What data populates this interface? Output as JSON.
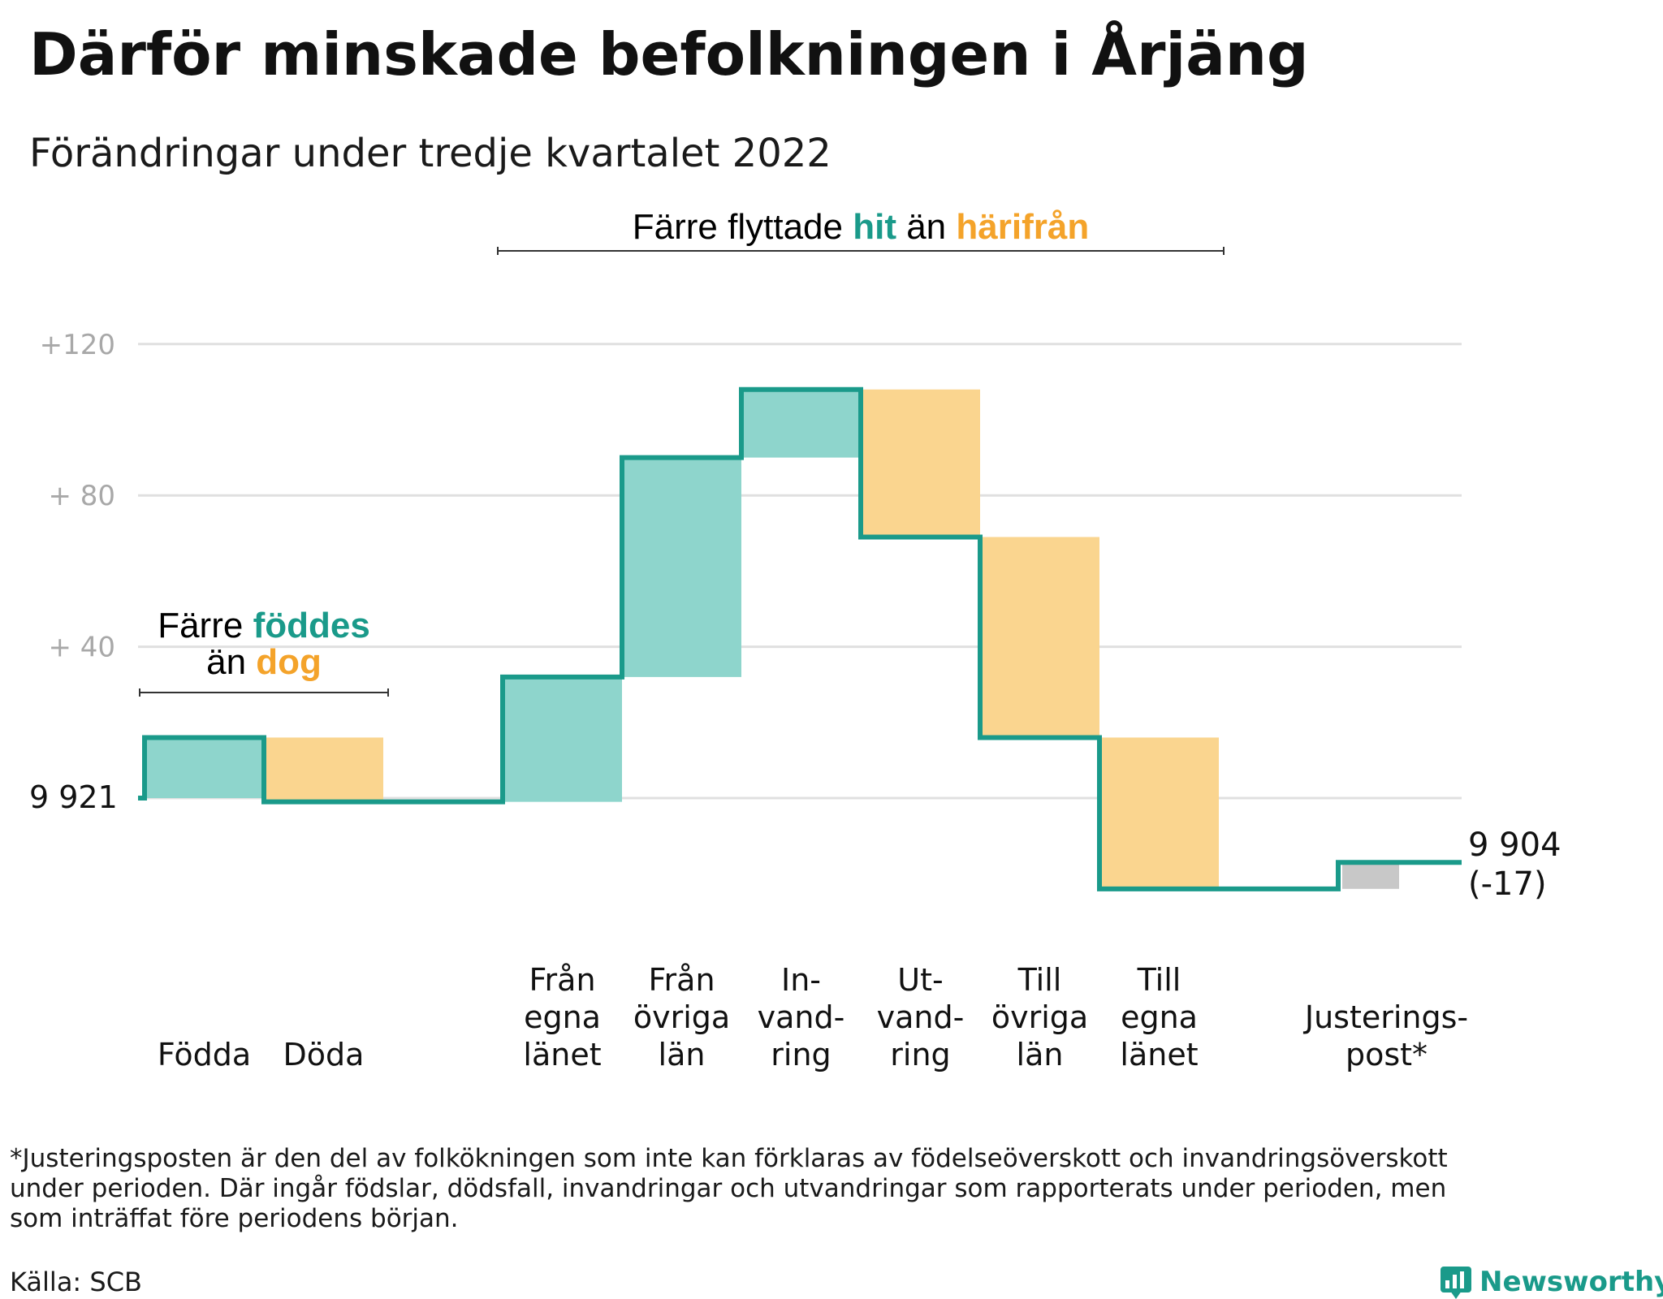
{
  "chart_data": {
    "type": "waterfall",
    "title": "Därför minskade befolkningen i Årjäng",
    "subtitle": "Förändringar under tredje kvartalet 2022",
    "start": {
      "label": "9 921",
      "value": 0
    },
    "end": {
      "label": "9 904",
      "change_label": "(-17)",
      "value": -17
    },
    "y_ticks": [
      {
        "value": 120,
        "label": "+120"
      },
      {
        "value": 80,
        "label": "+ 80"
      },
      {
        "value": 40,
        "label": "+ 40"
      }
    ],
    "ylim": [
      -24,
      122
    ],
    "grid": true,
    "steps": [
      {
        "lines": [
          "Födda"
        ],
        "delta": 16,
        "kind": "in"
      },
      {
        "lines": [
          "Döda"
        ],
        "delta": -17,
        "kind": "out"
      },
      {
        "lines": [],
        "delta": 0,
        "kind": "gap"
      },
      {
        "lines": [
          "Från",
          "egna",
          "länet"
        ],
        "delta": 33,
        "kind": "in"
      },
      {
        "lines": [
          "Från",
          "övriga",
          "län"
        ],
        "delta": 58,
        "kind": "in"
      },
      {
        "lines": [
          "In-",
          "vand-",
          "ring"
        ],
        "delta": 18,
        "kind": "in"
      },
      {
        "lines": [
          "Ut-",
          "vand-",
          "ring"
        ],
        "delta": -39,
        "kind": "out"
      },
      {
        "lines": [
          "Till",
          "övriga",
          "län"
        ],
        "delta": -53,
        "kind": "out"
      },
      {
        "lines": [
          "Till",
          "egna",
          "länet"
        ],
        "delta": -40,
        "kind": "out"
      },
      {
        "lines": [],
        "delta": 0,
        "kind": "gap"
      },
      {
        "lines": [
          "Justerings-",
          "post*"
        ],
        "delta": 7,
        "kind": "adjust"
      }
    ],
    "annotations": [
      {
        "line1": [
          {
            "text": "Färre ",
            "color": "#000000"
          },
          {
            "text": "föddes",
            "color": "#1a9a8a"
          }
        ],
        "line2": [
          {
            "text": "än ",
            "color": "#000000"
          },
          {
            "text": "dog",
            "color": "#f4a32a"
          }
        ],
        "from_step": 0,
        "to_step": 1
      },
      {
        "line1": [
          {
            "text": "Färre flyttade ",
            "color": "#000000"
          },
          {
            "text": "hit",
            "color": "#1a9a8a"
          },
          {
            "text": " än ",
            "color": "#000000"
          },
          {
            "text": "härifrån",
            "color": "#f4a32a"
          }
        ],
        "from_step": 3,
        "to_step": 8
      }
    ],
    "colors": {
      "line": "#1a9a8a",
      "in_fill": "#8ed5cc",
      "out_fill": "#fad58f",
      "adjust_fill": "#c8c8c8",
      "grid": "#e0e0e0",
      "tick_text": "#a8a8a8",
      "text": "#111111",
      "hit": "#1a9a8a",
      "harifran": "#f4a32a"
    }
  },
  "footnote": [
    "*Justeringsposten är den del av folkökningen som inte kan förklaras av födelseöverskott och invandringsöverskott",
    "under perioden. Där ingår födslar, dödsfall, invandringar och utvandringar som rapporterats under perioden, men",
    "som inträffat före periodens början."
  ],
  "source": "Källa: SCB",
  "brand": {
    "name": "Newsworthy",
    "icon": "newsworthy-logo-icon",
    "color": "#1a9a8a"
  }
}
